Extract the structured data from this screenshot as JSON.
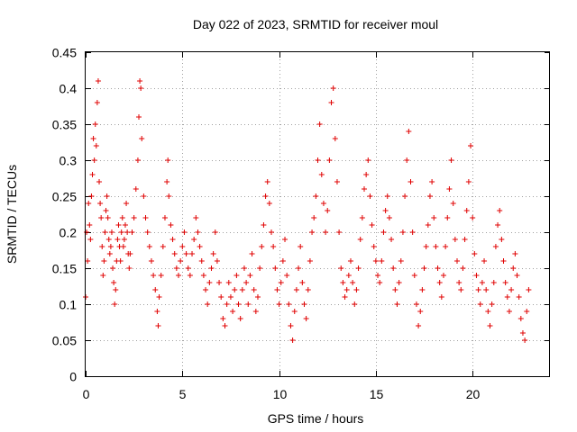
{
  "chart_data": {
    "type": "scatter",
    "title": "Day 022 of 2023, SRMTID for receiver moul",
    "xlabel": "GPS time / hours",
    "ylabel": "SRMTID / TECUs",
    "xlim": [
      0,
      24
    ],
    "ylim": [
      0,
      0.45
    ],
    "xticks": [
      0,
      5,
      10,
      15,
      20
    ],
    "xtick_labels": [
      "0",
      "5",
      "10",
      "15",
      "20"
    ],
    "yticks": [
      0,
      0.05,
      0.1,
      0.15,
      0.2,
      0.25,
      0.3,
      0.35,
      0.4,
      0.45
    ],
    "ytick_labels": [
      "0",
      "0.05",
      "0.1",
      "0.15",
      "0.2",
      "0.25",
      "0.3",
      "0.35",
      "0.4",
      "0.45"
    ],
    "grid": true,
    "marker": "+",
    "series": [
      {
        "name": "SRMTID",
        "color": "#e00000",
        "points": [
          [
            0.0,
            0.11
          ],
          [
            0.05,
            0.2
          ],
          [
            0.1,
            0.16
          ],
          [
            0.15,
            0.24
          ],
          [
            0.2,
            0.21
          ],
          [
            0.25,
            0.19
          ],
          [
            0.3,
            0.25
          ],
          [
            0.35,
            0.28
          ],
          [
            0.4,
            0.33
          ],
          [
            0.45,
            0.3
          ],
          [
            0.5,
            0.35
          ],
          [
            0.55,
            0.32
          ],
          [
            0.6,
            0.38
          ],
          [
            0.65,
            0.41
          ],
          [
            0.7,
            0.27
          ],
          [
            0.75,
            0.24
          ],
          [
            0.8,
            0.22
          ],
          [
            0.85,
            0.18
          ],
          [
            0.9,
            0.14
          ],
          [
            0.95,
            0.16
          ],
          [
            1.0,
            0.2
          ],
          [
            1.05,
            0.23
          ],
          [
            1.1,
            0.25
          ],
          [
            1.15,
            0.22
          ],
          [
            1.2,
            0.19
          ],
          [
            1.25,
            0.17
          ],
          [
            1.3,
            0.18
          ],
          [
            1.35,
            0.2
          ],
          [
            1.4,
            0.15
          ],
          [
            1.45,
            0.13
          ],
          [
            1.5,
            0.1
          ],
          [
            1.55,
            0.12
          ],
          [
            1.6,
            0.16
          ],
          [
            1.65,
            0.19
          ],
          [
            1.7,
            0.21
          ],
          [
            1.75,
            0.18
          ],
          [
            1.8,
            0.16
          ],
          [
            1.85,
            0.2
          ],
          [
            1.9,
            0.22
          ],
          [
            1.95,
            0.18
          ],
          [
            2.0,
            0.19
          ],
          [
            2.05,
            0.21
          ],
          [
            2.1,
            0.24
          ],
          [
            2.15,
            0.2
          ],
          [
            2.2,
            0.17
          ],
          [
            2.25,
            0.15
          ],
          [
            2.3,
            0.17
          ],
          [
            2.4,
            0.2
          ],
          [
            2.5,
            0.22
          ],
          [
            2.6,
            0.26
          ],
          [
            2.7,
            0.3
          ],
          [
            2.75,
            0.36
          ],
          [
            2.8,
            0.41
          ],
          [
            2.85,
            0.4
          ],
          [
            2.9,
            0.33
          ],
          [
            3.0,
            0.25
          ],
          [
            3.1,
            0.22
          ],
          [
            3.2,
            0.2
          ],
          [
            3.3,
            0.18
          ],
          [
            3.4,
            0.16
          ],
          [
            3.5,
            0.14
          ],
          [
            3.6,
            0.12
          ],
          [
            3.7,
            0.09
          ],
          [
            3.75,
            0.07
          ],
          [
            3.8,
            0.11
          ],
          [
            3.9,
            0.14
          ],
          [
            4.0,
            0.18
          ],
          [
            4.1,
            0.22
          ],
          [
            4.2,
            0.27
          ],
          [
            4.25,
            0.3
          ],
          [
            4.3,
            0.25
          ],
          [
            4.4,
            0.21
          ],
          [
            4.5,
            0.19
          ],
          [
            4.6,
            0.17
          ],
          [
            4.7,
            0.15
          ],
          [
            4.8,
            0.14
          ],
          [
            4.9,
            0.16
          ],
          [
            5.0,
            0.18
          ],
          [
            5.1,
            0.2
          ],
          [
            5.2,
            0.17
          ],
          [
            5.3,
            0.15
          ],
          [
            5.4,
            0.14
          ],
          [
            5.5,
            0.17
          ],
          [
            5.6,
            0.19
          ],
          [
            5.7,
            0.22
          ],
          [
            5.8,
            0.2
          ],
          [
            5.9,
            0.18
          ],
          [
            6.0,
            0.16
          ],
          [
            6.1,
            0.14
          ],
          [
            6.2,
            0.12
          ],
          [
            6.3,
            0.1
          ],
          [
            6.4,
            0.13
          ],
          [
            6.5,
            0.15
          ],
          [
            6.6,
            0.17
          ],
          [
            6.7,
            0.2
          ],
          [
            6.8,
            0.16
          ],
          [
            6.9,
            0.13
          ],
          [
            7.0,
            0.11
          ],
          [
            7.1,
            0.08
          ],
          [
            7.2,
            0.07
          ],
          [
            7.3,
            0.1
          ],
          [
            7.4,
            0.13
          ],
          [
            7.5,
            0.11
          ],
          [
            7.6,
            0.09
          ],
          [
            7.7,
            0.12
          ],
          [
            7.8,
            0.14
          ],
          [
            7.9,
            0.1
          ],
          [
            8.0,
            0.08
          ],
          [
            8.1,
            0.12
          ],
          [
            8.2,
            0.15
          ],
          [
            8.3,
            0.13
          ],
          [
            8.4,
            0.1
          ],
          [
            8.5,
            0.14
          ],
          [
            8.6,
            0.17
          ],
          [
            8.7,
            0.12
          ],
          [
            8.8,
            0.09
          ],
          [
            8.9,
            0.11
          ],
          [
            9.0,
            0.15
          ],
          [
            9.1,
            0.18
          ],
          [
            9.2,
            0.21
          ],
          [
            9.3,
            0.25
          ],
          [
            9.4,
            0.27
          ],
          [
            9.5,
            0.24
          ],
          [
            9.6,
            0.2
          ],
          [
            9.7,
            0.18
          ],
          [
            9.8,
            0.15
          ],
          [
            9.9,
            0.12
          ],
          [
            10.0,
            0.1
          ],
          [
            10.1,
            0.13
          ],
          [
            10.2,
            0.16
          ],
          [
            10.3,
            0.19
          ],
          [
            10.4,
            0.14
          ],
          [
            10.5,
            0.1
          ],
          [
            10.6,
            0.07
          ],
          [
            10.7,
            0.05
          ],
          [
            10.8,
            0.09
          ],
          [
            10.9,
            0.12
          ],
          [
            11.0,
            0.15
          ],
          [
            11.1,
            0.18
          ],
          [
            11.2,
            0.13
          ],
          [
            11.3,
            0.1
          ],
          [
            11.4,
            0.08
          ],
          [
            11.5,
            0.12
          ],
          [
            11.6,
            0.16
          ],
          [
            11.7,
            0.2
          ],
          [
            11.8,
            0.22
          ],
          [
            11.9,
            0.25
          ],
          [
            12.0,
            0.3
          ],
          [
            12.1,
            0.35
          ],
          [
            12.2,
            0.28
          ],
          [
            12.3,
            0.24
          ],
          [
            12.4,
            0.2
          ],
          [
            12.5,
            0.23
          ],
          [
            12.6,
            0.3
          ],
          [
            12.7,
            0.38
          ],
          [
            12.8,
            0.4
          ],
          [
            12.9,
            0.33
          ],
          [
            13.0,
            0.27
          ],
          [
            13.1,
            0.2
          ],
          [
            13.2,
            0.15
          ],
          [
            13.3,
            0.13
          ],
          [
            13.4,
            0.11
          ],
          [
            13.5,
            0.12
          ],
          [
            13.6,
            0.14
          ],
          [
            13.7,
            0.16
          ],
          [
            13.8,
            0.13
          ],
          [
            13.9,
            0.1
          ],
          [
            14.0,
            0.12
          ],
          [
            14.1,
            0.15
          ],
          [
            14.2,
            0.19
          ],
          [
            14.3,
            0.22
          ],
          [
            14.4,
            0.26
          ],
          [
            14.5,
            0.28
          ],
          [
            14.6,
            0.3
          ],
          [
            14.7,
            0.25
          ],
          [
            14.8,
            0.21
          ],
          [
            14.9,
            0.18
          ],
          [
            15.0,
            0.16
          ],
          [
            15.1,
            0.14
          ],
          [
            15.2,
            0.13
          ],
          [
            15.3,
            0.16
          ],
          [
            15.4,
            0.2
          ],
          [
            15.5,
            0.23
          ],
          [
            15.6,
            0.25
          ],
          [
            15.7,
            0.22
          ],
          [
            15.8,
            0.19
          ],
          [
            15.9,
            0.15
          ],
          [
            16.0,
            0.12
          ],
          [
            16.1,
            0.1
          ],
          [
            16.2,
            0.13
          ],
          [
            16.3,
            0.16
          ],
          [
            16.4,
            0.2
          ],
          [
            16.5,
            0.25
          ],
          [
            16.6,
            0.3
          ],
          [
            16.7,
            0.34
          ],
          [
            16.8,
            0.27
          ],
          [
            16.9,
            0.2
          ],
          [
            17.0,
            0.14
          ],
          [
            17.1,
            0.1
          ],
          [
            17.2,
            0.07
          ],
          [
            17.3,
            0.09
          ],
          [
            17.4,
            0.12
          ],
          [
            17.5,
            0.15
          ],
          [
            17.6,
            0.18
          ],
          [
            17.7,
            0.21
          ],
          [
            17.8,
            0.25
          ],
          [
            17.9,
            0.27
          ],
          [
            18.0,
            0.22
          ],
          [
            18.1,
            0.18
          ],
          [
            18.2,
            0.15
          ],
          [
            18.3,
            0.13
          ],
          [
            18.4,
            0.11
          ],
          [
            18.5,
            0.14
          ],
          [
            18.6,
            0.18
          ],
          [
            18.7,
            0.22
          ],
          [
            18.8,
            0.26
          ],
          [
            18.9,
            0.3
          ],
          [
            19.0,
            0.24
          ],
          [
            19.1,
            0.19
          ],
          [
            19.2,
            0.16
          ],
          [
            19.3,
            0.13
          ],
          [
            19.4,
            0.12
          ],
          [
            19.5,
            0.15
          ],
          [
            19.6,
            0.19
          ],
          [
            19.7,
            0.23
          ],
          [
            19.8,
            0.27
          ],
          [
            19.9,
            0.32
          ],
          [
            20.0,
            0.22
          ],
          [
            20.1,
            0.17
          ],
          [
            20.2,
            0.14
          ],
          [
            20.3,
            0.12
          ],
          [
            20.4,
            0.1
          ],
          [
            20.5,
            0.13
          ],
          [
            20.6,
            0.16
          ],
          [
            20.7,
            0.12
          ],
          [
            20.8,
            0.09
          ],
          [
            20.9,
            0.07
          ],
          [
            21.0,
            0.1
          ],
          [
            21.1,
            0.13
          ],
          [
            21.2,
            0.18
          ],
          [
            21.3,
            0.21
          ],
          [
            21.4,
            0.23
          ],
          [
            21.5,
            0.19
          ],
          [
            21.6,
            0.16
          ],
          [
            21.7,
            0.13
          ],
          [
            21.8,
            0.11
          ],
          [
            21.9,
            0.09
          ],
          [
            22.0,
            0.12
          ],
          [
            22.1,
            0.15
          ],
          [
            22.2,
            0.17
          ],
          [
            22.3,
            0.14
          ],
          [
            22.4,
            0.11
          ],
          [
            22.5,
            0.08
          ],
          [
            22.6,
            0.06
          ],
          [
            22.7,
            0.05
          ],
          [
            22.8,
            0.09
          ],
          [
            22.9,
            0.12
          ]
        ]
      }
    ]
  }
}
